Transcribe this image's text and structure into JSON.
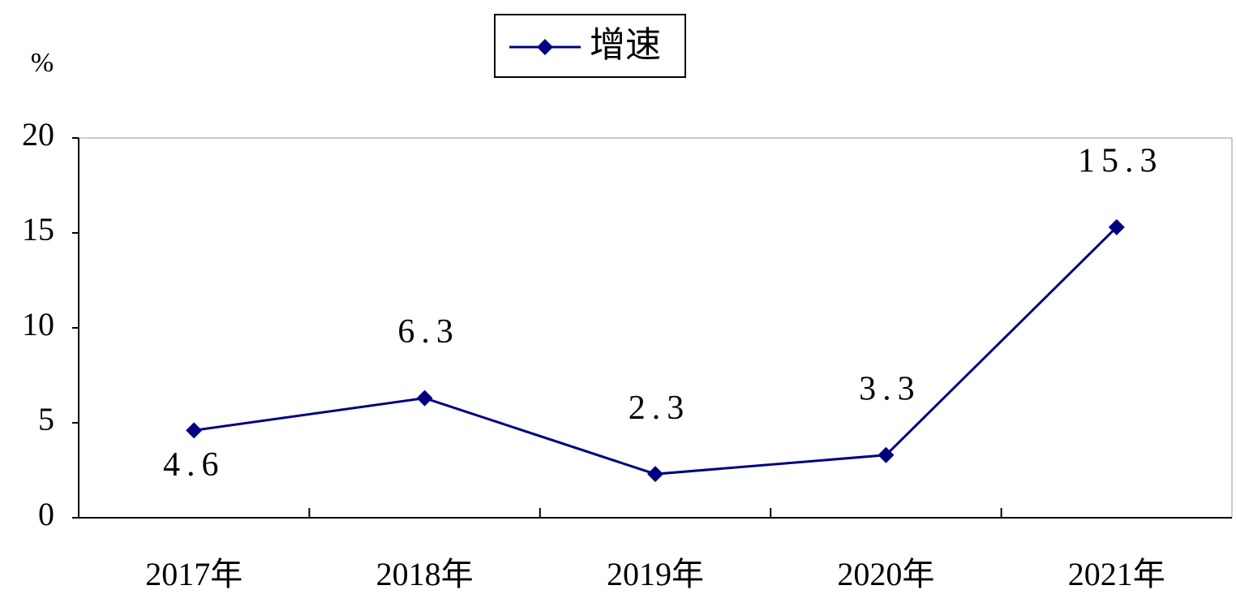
{
  "chart_data": {
    "type": "line",
    "y_label": "%",
    "categories": [
      "2017年",
      "2018年",
      "2019年",
      "2020年",
      "2021年"
    ],
    "series": [
      {
        "name": "增速",
        "color": "#000080",
        "values": [
          4.6,
          6.3,
          2.3,
          3.3,
          15.3
        ]
      }
    ],
    "ylim": [
      0,
      20
    ],
    "yticks": [
      0,
      5,
      10,
      15,
      20
    ],
    "grid": false,
    "legend": "top"
  }
}
